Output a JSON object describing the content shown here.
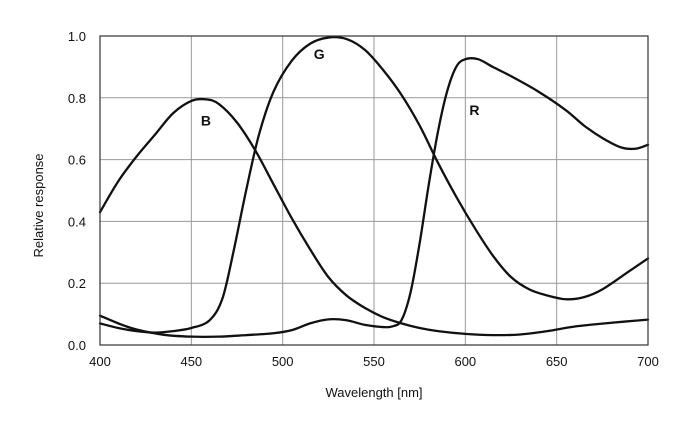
{
  "chart_data": {
    "type": "line",
    "title": "",
    "xlabel": "Wavelength [nm]",
    "ylabel": "Relative response",
    "xlim": [
      400,
      700
    ],
    "ylim": [
      0,
      1
    ],
    "xticks": [
      400,
      450,
      500,
      550,
      600,
      650,
      700
    ],
    "yticks": [
      0,
      0.2,
      0.4,
      0.6,
      0.8,
      1.0
    ],
    "xtick_labels": [
      "400",
      "450",
      "500",
      "550",
      "600",
      "650",
      "700"
    ],
    "ytick_labels": [
      "0.0",
      "0.2",
      "0.4",
      "0.6",
      "0.8",
      "1.0"
    ],
    "grid": true,
    "legend": "none",
    "line_color": "#111111",
    "series": [
      {
        "name": "B",
        "label": {
          "text": "B",
          "x": 458,
          "y": 0.71
        },
        "points": [
          [
            400,
            0.43
          ],
          [
            410,
            0.53
          ],
          [
            420,
            0.61
          ],
          [
            430,
            0.68
          ],
          [
            440,
            0.75
          ],
          [
            450,
            0.79
          ],
          [
            458,
            0.795
          ],
          [
            465,
            0.78
          ],
          [
            475,
            0.72
          ],
          [
            485,
            0.63
          ],
          [
            495,
            0.52
          ],
          [
            505,
            0.41
          ],
          [
            515,
            0.31
          ],
          [
            525,
            0.22
          ],
          [
            535,
            0.16
          ],
          [
            545,
            0.12
          ],
          [
            555,
            0.09
          ],
          [
            565,
            0.07
          ],
          [
            575,
            0.055
          ],
          [
            585,
            0.045
          ],
          [
            600,
            0.036
          ],
          [
            615,
            0.032
          ],
          [
            630,
            0.034
          ],
          [
            645,
            0.045
          ],
          [
            660,
            0.06
          ],
          [
            680,
            0.072
          ],
          [
            700,
            0.082
          ]
        ]
      },
      {
        "name": "G",
        "label": {
          "text": "G",
          "x": 520,
          "y": 0.925
        },
        "points": [
          [
            400,
            0.07
          ],
          [
            410,
            0.055
          ],
          [
            420,
            0.045
          ],
          [
            430,
            0.04
          ],
          [
            440,
            0.045
          ],
          [
            450,
            0.055
          ],
          [
            460,
            0.08
          ],
          [
            467,
            0.15
          ],
          [
            473,
            0.3
          ],
          [
            480,
            0.5
          ],
          [
            487,
            0.68
          ],
          [
            495,
            0.82
          ],
          [
            505,
            0.92
          ],
          [
            515,
            0.975
          ],
          [
            525,
            0.995
          ],
          [
            535,
            0.99
          ],
          [
            545,
            0.955
          ],
          [
            555,
            0.89
          ],
          [
            565,
            0.81
          ],
          [
            575,
            0.71
          ],
          [
            585,
            0.59
          ],
          [
            595,
            0.48
          ],
          [
            605,
            0.38
          ],
          [
            615,
            0.29
          ],
          [
            625,
            0.22
          ],
          [
            635,
            0.18
          ],
          [
            645,
            0.16
          ],
          [
            655,
            0.148
          ],
          [
            665,
            0.155
          ],
          [
            675,
            0.18
          ],
          [
            690,
            0.24
          ],
          [
            700,
            0.28
          ]
        ]
      },
      {
        "name": "R",
        "label": {
          "text": "R",
          "x": 605,
          "y": 0.745
        },
        "points": [
          [
            400,
            0.095
          ],
          [
            410,
            0.07
          ],
          [
            420,
            0.05
          ],
          [
            435,
            0.033
          ],
          [
            450,
            0.027
          ],
          [
            465,
            0.027
          ],
          [
            480,
            0.032
          ],
          [
            495,
            0.038
          ],
          [
            505,
            0.048
          ],
          [
            515,
            0.07
          ],
          [
            525,
            0.083
          ],
          [
            535,
            0.08
          ],
          [
            545,
            0.065
          ],
          [
            555,
            0.058
          ],
          [
            560,
            0.06
          ],
          [
            565,
            0.08
          ],
          [
            570,
            0.17
          ],
          [
            575,
            0.33
          ],
          [
            580,
            0.52
          ],
          [
            585,
            0.69
          ],
          [
            590,
            0.82
          ],
          [
            595,
            0.9
          ],
          [
            600,
            0.925
          ],
          [
            607,
            0.925
          ],
          [
            615,
            0.9
          ],
          [
            625,
            0.87
          ],
          [
            640,
            0.82
          ],
          [
            655,
            0.76
          ],
          [
            665,
            0.71
          ],
          [
            675,
            0.67
          ],
          [
            685,
            0.64
          ],
          [
            693,
            0.635
          ],
          [
            700,
            0.648
          ]
        ]
      }
    ]
  }
}
